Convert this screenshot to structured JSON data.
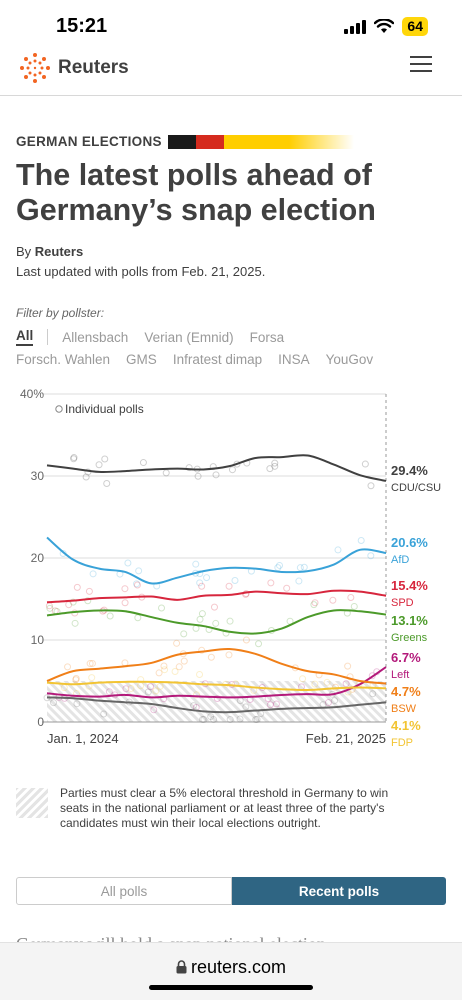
{
  "status": {
    "time": "15:21",
    "battery": "64"
  },
  "nav": {
    "logo": "Reuters"
  },
  "article": {
    "kicker": "GERMAN ELECTIONS",
    "headline": "The latest polls ahead of Germany’s snap election",
    "byline_prefix": "By",
    "byline_author": "Reuters",
    "updated": "Last updated with polls from Feb. 21, 2025."
  },
  "filters": {
    "label": "Filter by pollster:",
    "items": [
      "All",
      "Allensbach",
      "Verian (Emnid)",
      "Forsa",
      "Forsch. Wahlen",
      "GMS",
      "Infratest dimap",
      "INSA",
      "YouGov"
    ],
    "active": "All"
  },
  "chart_data": {
    "type": "line",
    "y_ticks": [
      "40%",
      "30",
      "20",
      "10",
      "0"
    ],
    "ylim": [
      0,
      40
    ],
    "x_labels": [
      "Jan. 1, 2024",
      "Feb. 21, 2025"
    ],
    "legend_note": "Individual polls",
    "threshold": 5,
    "x_dates": [
      "2024-01",
      "2024-02",
      "2024-03",
      "2024-04",
      "2024-05",
      "2024-06",
      "2024-07",
      "2024-08",
      "2024-09",
      "2024-10",
      "2024-11",
      "2024-12",
      "2025-01",
      "2025-02-21"
    ],
    "series": [
      {
        "name": "CDU/CSU",
        "color": "#404040",
        "final": "29.4%",
        "values": [
          31.3,
          30.9,
          30.5,
          30.6,
          30.8,
          30.9,
          30.8,
          31.2,
          32.2,
          32.3,
          32.5,
          31.4,
          30.1,
          29.4
        ]
      },
      {
        "name": "AfD",
        "color": "#39a2d8",
        "final": "20.6%",
        "values": [
          22.5,
          19.8,
          18.7,
          18.3,
          16.9,
          17.6,
          18.4,
          18.8,
          18.7,
          18.3,
          18.4,
          19.2,
          21.0,
          20.6
        ]
      },
      {
        "name": "SPD",
        "color": "#d7263d",
        "final": "15.4%",
        "values": [
          14.6,
          14.8,
          15.1,
          15.2,
          15.3,
          14.9,
          15.4,
          15.5,
          15.9,
          15.7,
          15.6,
          16.0,
          15.9,
          15.4
        ]
      },
      {
        "name": "Greens",
        "color": "#4c9a2a",
        "final": "13.1%",
        "values": [
          13.0,
          13.4,
          13.6,
          13.5,
          12.8,
          12.1,
          11.7,
          11.0,
          10.8,
          11.4,
          12.8,
          13.6,
          13.5,
          13.1
        ]
      },
      {
        "name": "Left",
        "color": "#b3197a",
        "final": "6.7%",
        "values": [
          3.5,
          3.2,
          3.1,
          3.3,
          3.0,
          3.2,
          3.1,
          3.0,
          3.1,
          3.3,
          3.4,
          3.4,
          4.6,
          6.7
        ]
      },
      {
        "name": "BSW",
        "color": "#f07f18",
        "final": "4.7%",
        "values": [
          5.0,
          6.2,
          6.5,
          6.8,
          7.2,
          8.2,
          8.6,
          8.9,
          8.3,
          7.1,
          6.2,
          5.8,
          5.0,
          4.7
        ]
      },
      {
        "name": "FDP",
        "color": "#f2c433",
        "final": "4.1%",
        "values": [
          4.8,
          4.6,
          4.8,
          4.9,
          4.9,
          4.8,
          4.6,
          4.5,
          4.2,
          4.0,
          3.9,
          4.1,
          4.2,
          4.1
        ]
      },
      {
        "name": "",
        "color": "#666666",
        "final": "",
        "values": [
          3.0,
          2.9,
          2.6,
          2.4,
          2.2,
          1.7,
          1.3,
          1.2,
          1.4,
          1.6,
          1.7,
          1.8,
          2.1,
          2.4
        ]
      }
    ]
  },
  "note": "Parties must clear a 5% electoral threshold in Germany to win seats in the national parliament or at least three of the party's candidates must win their local elections outright.",
  "toggle": {
    "all": "All polls",
    "recent": "Recent polls"
  },
  "body_peek": "Germany will hold a snap national election",
  "url": "reuters.com"
}
